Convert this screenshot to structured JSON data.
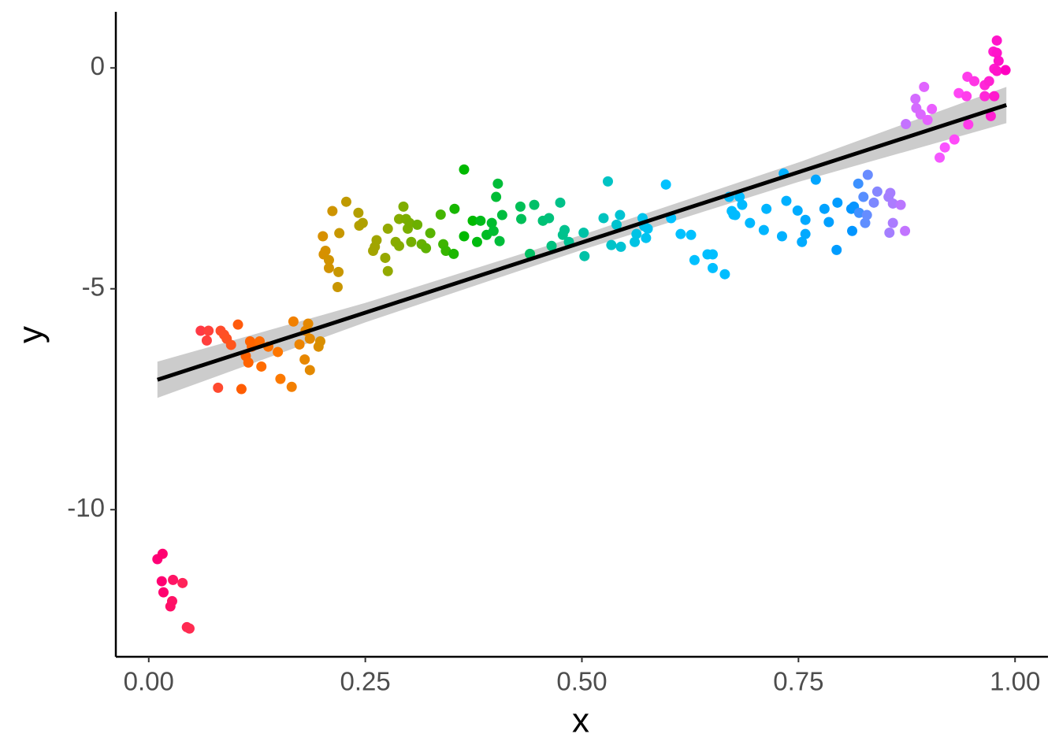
{
  "chart_data": {
    "type": "scatter",
    "x_label": "x",
    "y_label": "y",
    "xlim": [
      -0.038,
      1.038
    ],
    "ylim": [
      -13.33,
      1.27
    ],
    "xticks": [
      {
        "value": 0,
        "label": "0.00"
      },
      {
        "value": 0.25,
        "label": "0.25"
      },
      {
        "value": 0.5,
        "label": "0.50"
      },
      {
        "value": 0.75,
        "label": "0.75"
      },
      {
        "value": 1,
        "label": "1.00"
      }
    ],
    "yticks": [
      0,
      -5,
      -10
    ],
    "point_hue_range": [
      15,
      350
    ],
    "x": [
      0.01,
      0.016,
      0.015,
      0.028,
      0.017,
      0.039,
      0.027,
      0.025,
      0.044,
      0.047,
      0.06,
      0.069,
      0.067,
      0.083,
      0.087,
      0.09,
      0.095,
      0.103,
      0.08,
      0.107,
      0.112,
      0.117,
      0.115,
      0.119,
      0.128,
      0.13,
      0.138,
      0.149,
      0.152,
      0.165,
      0.167,
      0.174,
      0.18,
      0.184,
      0.181,
      0.186,
      0.186,
      0.196,
      0.198,
      0.201,
      0.204,
      0.202,
      0.208,
      0.208,
      0.212,
      0.219,
      0.218,
      0.22,
      0.228,
      0.242,
      0.243,
      0.247,
      0.259,
      0.261,
      0.263,
      0.273,
      0.276,
      0.276,
      0.285,
      0.289,
      0.289,
      0.294,
      0.297,
      0.299,
      0.301,
      0.303,
      0.31,
      0.315,
      0.32,
      0.325,
      0.337,
      0.34,
      0.343,
      0.352,
      0.353,
      0.364,
      0.364,
      0.374,
      0.379,
      0.383,
      0.39,
      0.396,
      0.398,
      0.401,
      0.403,
      0.405,
      0.408,
      0.429,
      0.43,
      0.44,
      0.445,
      0.455,
      0.462,
      0.465,
      0.475,
      0.478,
      0.48,
      0.485,
      0.502,
      0.503,
      0.525,
      0.53,
      0.534,
      0.54,
      0.544,
      0.545,
      0.561,
      0.563,
      0.57,
      0.572,
      0.574,
      0.576,
      0.597,
      0.603,
      0.614,
      0.626,
      0.63,
      0.645,
      0.651,
      0.651,
      0.665,
      0.67,
      0.673,
      0.675,
      0.677,
      0.682,
      0.685,
      0.694,
      0.71,
      0.713,
      0.731,
      0.733,
      0.736,
      0.749,
      0.754,
      0.758,
      0.758,
      0.77,
      0.78,
      0.785,
      0.794,
      0.795,
      0.811,
      0.812,
      0.814,
      0.819,
      0.82,
      0.825,
      0.827,
      0.829,
      0.83,
      0.837,
      0.841,
      0.854,
      0.856,
      0.855,
      0.859,
      0.859,
      0.868,
      0.873,
      0.874,
      0.885,
      0.886,
      0.891,
      0.895,
      0.899,
      0.904,
      0.913,
      0.919,
      0.93,
      0.935,
      0.944,
      0.945,
      0.946,
      0.953,
      0.965,
      0.965,
      0.97,
      0.972,
      0.975,
      0.976,
      0.976,
      0.979,
      0.979,
      0.981,
      0.979,
      0.989
    ],
    "values": [
      -11.12,
      -11.0,
      -11.62,
      -11.59,
      -11.87,
      -11.66,
      -12.07,
      -12.19,
      -12.66,
      -12.69,
      -5.95,
      -5.95,
      -6.17,
      -5.95,
      -6.04,
      -6.13,
      -6.27,
      -5.81,
      -7.24,
      -7.27,
      -6.52,
      -6.19,
      -6.67,
      -6.31,
      -6.19,
      -6.76,
      -6.31,
      -6.43,
      -7.04,
      -7.22,
      -5.74,
      -6.26,
      -6.6,
      -5.79,
      -5.95,
      -6.13,
      -6.84,
      -6.31,
      -6.19,
      -3.81,
      -4.14,
      -4.22,
      -4.35,
      -4.53,
      -3.24,
      -4.62,
      -4.96,
      -3.74,
      -3.03,
      -3.28,
      -3.57,
      -3.51,
      -4.14,
      -4.05,
      -3.9,
      -4.3,
      -4.6,
      -3.64,
      -3.94,
      -4.03,
      -3.42,
      -3.14,
      -3.42,
      -3.64,
      -3.51,
      -3.94,
      -3.55,
      -3.99,
      -4.08,
      -3.74,
      -3.32,
      -3.99,
      -4.14,
      -4.21,
      -3.19,
      -3.81,
      -2.3,
      -3.46,
      -3.94,
      -3.46,
      -3.78,
      -3.51,
      -3.69,
      -2.92,
      -2.62,
      -3.92,
      -3.33,
      -3.14,
      -3.42,
      -4.21,
      -3.1,
      -3.46,
      -3.4,
      -4.03,
      -3.05,
      -3.78,
      -3.67,
      -3.94,
      -3.73,
      -4.26,
      -3.4,
      -2.57,
      -4.01,
      -3.55,
      -3.33,
      -4.05,
      -3.94,
      -3.76,
      -3.4,
      -3.58,
      -3.85,
      -3.64,
      -2.64,
      -3.4,
      -3.76,
      -3.78,
      -4.35,
      -4.22,
      -4.22,
      -4.53,
      -4.67,
      -2.92,
      -3.24,
      -3.32,
      -3.33,
      -2.92,
      -3.1,
      -3.51,
      -3.67,
      -3.19,
      -3.81,
      -2.39,
      -3.01,
      -3.23,
      -3.94,
      -3.44,
      -3.76,
      -2.53,
      -3.19,
      -3.49,
      -4.12,
      -3.05,
      -3.19,
      -3.69,
      -3.14,
      -2.62,
      -3.28,
      -2.92,
      -3.51,
      -3.33,
      -2.42,
      -3.05,
      -2.8,
      -2.92,
      -2.83,
      -3.73,
      -3.51,
      -3.07,
      -3.1,
      -3.69,
      -1.27,
      -0.7,
      -0.91,
      -1.05,
      -0.43,
      -1.18,
      -0.93,
      -2.03,
      -1.8,
      -1.62,
      -0.57,
      -0.64,
      -0.2,
      -1.28,
      -0.3,
      -0.39,
      -0.64,
      -0.3,
      -1.09,
      0.37,
      -0.02,
      -0.64,
      0.62,
      0.34,
      0.16,
      -0.07,
      -0.05
    ],
    "fit": {
      "x": [
        0.01,
        0.25,
        0.5,
        0.75,
        0.99
      ],
      "y": [
        -7.06,
        -5.54,
        -3.95,
        -2.36,
        -0.84
      ],
      "lower": [
        -7.47,
        -5.76,
        -4.12,
        -2.58,
        -1.25
      ],
      "upper": [
        -6.65,
        -5.32,
        -3.78,
        -2.14,
        -0.43
      ],
      "color": "#000000",
      "band_color": "#cccccc"
    }
  }
}
